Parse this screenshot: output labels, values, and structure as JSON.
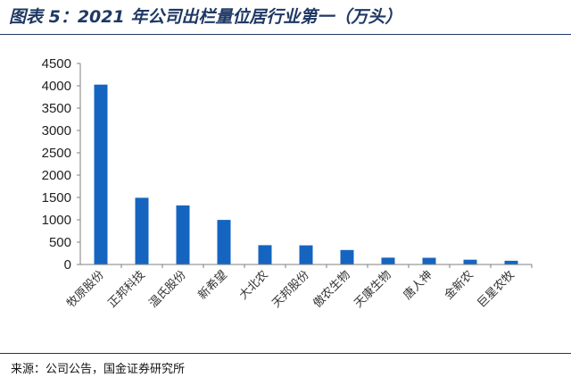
{
  "header": {
    "title": "图表 5：2021 年公司出栏量位居行业第一（万头）"
  },
  "footer": {
    "source": "来源：公司公告，国金证券研究所"
  },
  "chart_data": {
    "type": "bar",
    "categories": [
      "牧原股份",
      "正邦科技",
      "温氏股份",
      "新希望",
      "大北农",
      "天邦股份",
      "傲农生物",
      "天康生物",
      "唐人神",
      "金新农",
      "巨星农牧"
    ],
    "values": [
      4026,
      1493,
      1322,
      998,
      432,
      428,
      324,
      153,
      150,
      107,
      83
    ],
    "ylim": [
      0,
      4500
    ],
    "yticks": [
      0,
      500,
      1000,
      1500,
      2000,
      2500,
      3000,
      3500,
      4000,
      4500
    ],
    "bar_color": "#1565c0",
    "grid": false
  }
}
